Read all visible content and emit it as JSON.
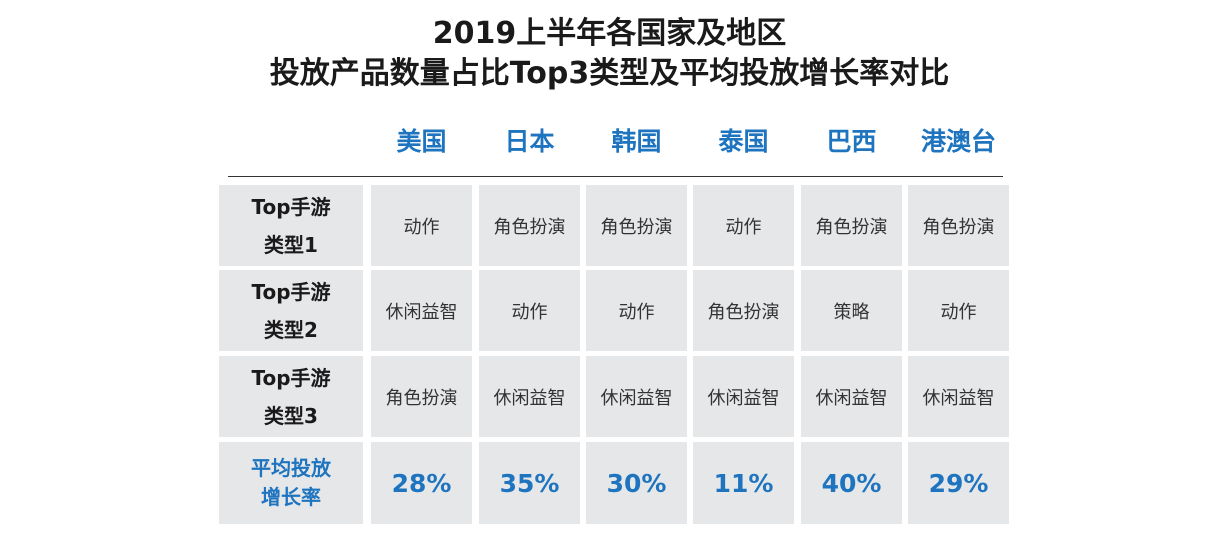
{
  "chart_data": {
    "type": "table",
    "title_lines": [
      "2019上半年各国家及地区",
      "投放产品数量占比Top3类型及平均投放增长率对比"
    ],
    "columns": [
      "美国",
      "日本",
      "韩国",
      "泰国",
      "巴西",
      "港澳台"
    ],
    "rows": [
      {
        "label_lines": [
          "Top手游",
          "类型1"
        ],
        "values": [
          "动作",
          "角色扮演",
          "角色扮演",
          "动作",
          "角色扮演",
          "角色扮演"
        ]
      },
      {
        "label_lines": [
          "Top手游",
          "类型2"
        ],
        "values": [
          "休闲益智",
          "动作",
          "动作",
          "角色扮演",
          "策略",
          "动作"
        ]
      },
      {
        "label_lines": [
          "Top手游",
          "类型3"
        ],
        "values": [
          "角色扮演",
          "休闲益智",
          "休闲益智",
          "休闲益智",
          "休闲益智",
          "休闲益智"
        ]
      },
      {
        "label_lines": [
          "平均投放",
          "增长率"
        ],
        "values": [
          "28%",
          "35%",
          "30%",
          "11%",
          "40%",
          "29%"
        ],
        "growth_percent": [
          28,
          35,
          30,
          11,
          40,
          29
        ]
      }
    ],
    "colors": {
      "accent": "#1f74bf",
      "cell_background": "#e6e7e9",
      "text": "#1a1a1a"
    }
  }
}
